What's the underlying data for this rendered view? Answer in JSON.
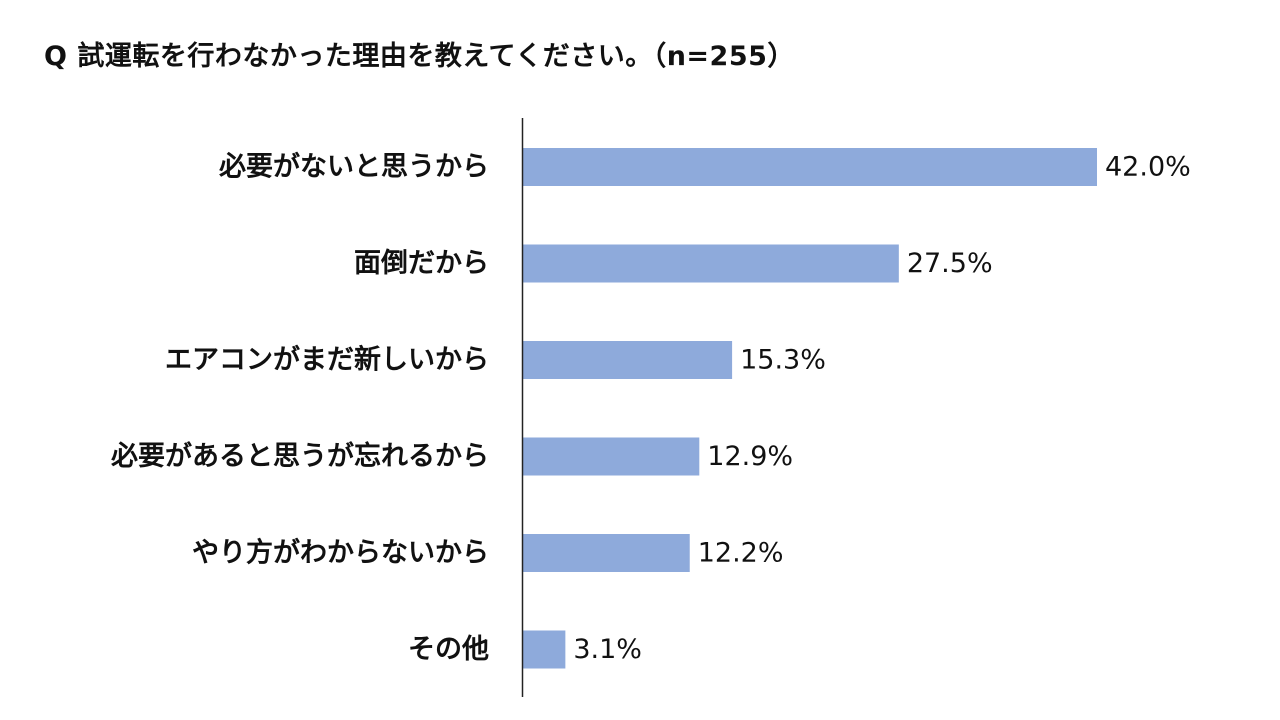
{
  "title": "Q 試運転を行わなかった理由を教えてください。（n=255）",
  "colors": {
    "bar": "#8eaadb",
    "axis": "#222222",
    "text": "#111111"
  },
  "chart_data": {
    "type": "bar",
    "orientation": "horizontal",
    "title": "Q 試運転を行わなかった理由を教えてください。（n=255）",
    "categories": [
      "必要がないと思うから",
      "面倒だから",
      "エアコンがまだ新しいから",
      "必要があると思うが忘れるから",
      "やり方がわからないから",
      "その他"
    ],
    "values": [
      42.0,
      27.5,
      15.3,
      12.9,
      12.2,
      3.1
    ],
    "value_labels": [
      "42.0%",
      "27.5%",
      "15.3%",
      "12.9%",
      "12.2%",
      "3.1%"
    ],
    "unit": "%",
    "xlim": [
      0,
      45
    ],
    "grid": false,
    "legend": "none"
  }
}
